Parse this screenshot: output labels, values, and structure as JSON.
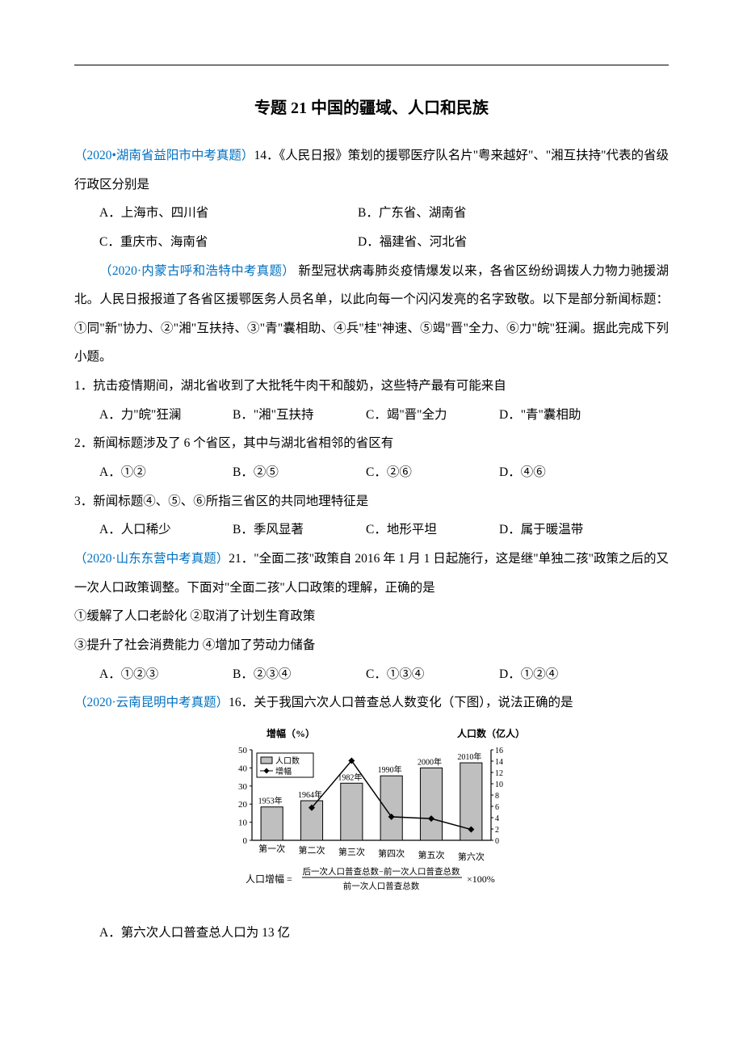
{
  "title": "专题 21  中国的疆域、人口和民族",
  "q14": {
    "source": "（2020•湖南省益阳市中考真题）",
    "num": "14．",
    "stem": "《人民日报》策划的援鄂医疗队名片\"粤来越好\"、\"湘互扶持\"代表的省级行政区分别是",
    "A": "A．上海市、四川省",
    "B": "B．广东省、湖南省",
    "C": "C．重庆市、海南省",
    "D": "D．福建省、河北省"
  },
  "passage1": {
    "source": "（2020·内蒙古呼和浩特中考真题）",
    "body": "   新型冠状病毒肺炎疫情爆发以来，各省区纷纷调拨人力物力驰援湖北。人民日报报道了各省区援鄂医务人员名单，以此向每一个闪闪发亮的名字致敬。以下是部分新闻标题：①同\"新\"协力、②\"湘\"互扶持、③\"青\"囊相助、④兵\"桂\"神速、⑤竭\"晋\"全力、⑥力\"皖\"狂澜。据此完成下列小题。"
  },
  "q1": {
    "stem": "1．抗击疫情期间，湖北省收到了大批牦牛肉干和酸奶，这些特产最有可能来自",
    "A": "A．力\"皖\"狂澜",
    "B": "B．\"湘\"互扶持",
    "C": "C．竭\"晋\"全力",
    "D": "D．\"青\"囊相助"
  },
  "q2": {
    "stem": "2．新闻标题涉及了 6 个省区，其中与湖北省相邻的省区有",
    "A": "A．①②",
    "B": "B．②⑤",
    "C": "C．②⑥",
    "D": "D．④⑥"
  },
  "q3": {
    "stem": "3．新闻标题④、⑤、⑥所指三省区的共同地理特征是",
    "A": "A．人口稀少",
    "B": "B．季风显著",
    "C": "C．地形平坦",
    "D": "D．属于暖温带"
  },
  "q21": {
    "source": "（2020·山东东营中考真题）",
    "num": "21．",
    "stem": "\"全面二孩\"政策自 2016 年 1 月 1 日起施行，这是继\"单独二孩\"政策之后的又一次人口政策调整。下面对\"全面二孩\"人口政策的理解，正确的是",
    "line1": "①缓解了人口老龄化   ②取消了计划生育政策",
    "line2": "③提升了社会消费能力   ④增加了劳动力储备",
    "A": "A．①②③",
    "B": "B．②③④",
    "C": "C．①③④",
    "D": "D．①②④"
  },
  "q16": {
    "source": "（2020·云南昆明中考真题）",
    "num": "16．",
    "stem": "关于我国六次人口普查总人数变化（下图），说法正确的是",
    "A": "A．第六次人口普查总人口为 13 亿"
  },
  "chart": {
    "type": "bar_line_combo",
    "y_left_title": "增幅（%）",
    "y_right_title": "人口数（亿人）",
    "y_left_ticks": [
      0,
      10,
      20,
      30,
      40,
      50
    ],
    "y_right_ticks": [
      0,
      2,
      4,
      6,
      8,
      10,
      12,
      14,
      16
    ],
    "legend": {
      "bar": "人口数",
      "line": "增幅"
    },
    "categories": [
      "第一次",
      "第二次",
      "第三次",
      "第四次",
      "第五次",
      "第六次"
    ],
    "year_labels": [
      "1953年",
      "1964年",
      "1982年",
      "1990年",
      "2000年",
      "2010年"
    ],
    "bar_values_right_axis": [
      5.9,
      7.0,
      10.1,
      11.4,
      12.8,
      13.7
    ],
    "line_values_left_axis": [
      null,
      18,
      44,
      13,
      12,
      6
    ],
    "bar_fill": "#bfbfbf",
    "bar_stroke": "#000000",
    "line_color": "#000000",
    "marker": "diamond",
    "axis_color": "#000000",
    "background": "#ffffff",
    "legend_border": "#000000",
    "formula": "人口增幅 =",
    "formula_numer": "后一次人口普查总数−前一次人口普查总数",
    "formula_denom": "前一次人口普查总数",
    "formula_suffix": "×100%"
  }
}
